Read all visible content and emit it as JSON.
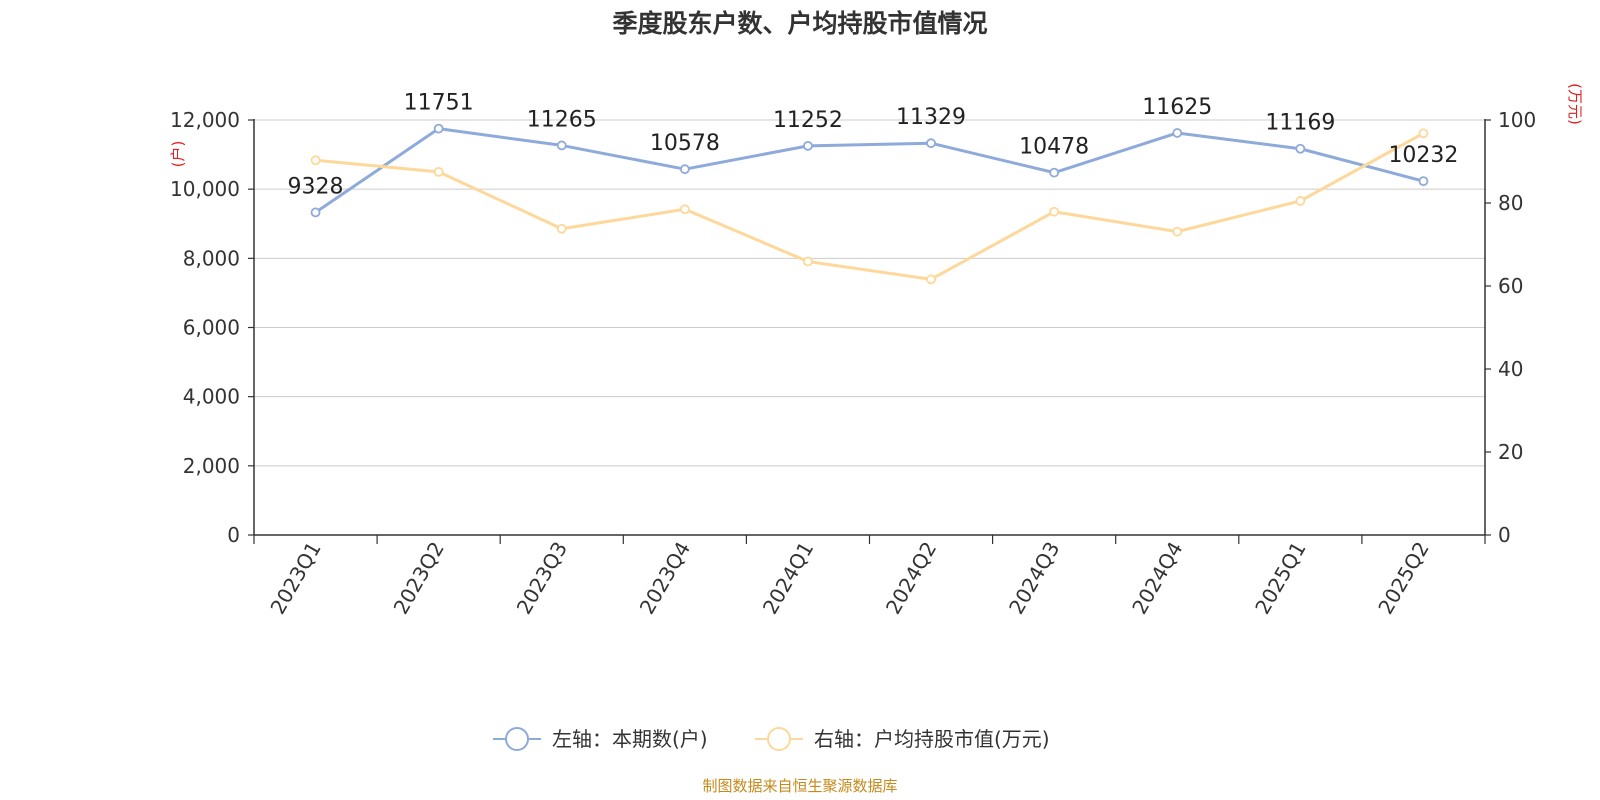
{
  "chart_data": {
    "type": "line",
    "title": "季度股东户数、户均持股市值情况",
    "categories": [
      "2023Q1",
      "2023Q2",
      "2023Q3",
      "2023Q4",
      "2024Q1",
      "2024Q2",
      "2024Q3",
      "2024Q4",
      "2025Q1",
      "2025Q2"
    ],
    "left_axis": {
      "unit": "(户)",
      "ylim": [
        0,
        12000
      ],
      "ticks": [
        "0",
        "2,000",
        "4,000",
        "6,000",
        "8,000",
        "10,000",
        "12,000"
      ],
      "tick_values": [
        0,
        2000,
        4000,
        6000,
        8000,
        10000,
        12000
      ]
    },
    "right_axis": {
      "unit": "(万元)",
      "ylim": [
        0,
        100
      ],
      "ticks": [
        "0",
        "20",
        "40",
        "60",
        "80",
        "100"
      ],
      "tick_values": [
        0,
        20,
        40,
        60,
        80,
        100
      ]
    },
    "series": [
      {
        "name": "左轴：本期数(户)",
        "axis": "left",
        "color": "#8eaadb",
        "values": [
          9328,
          11751,
          11265,
          10578,
          11252,
          11329,
          10478,
          11625,
          11169,
          10232
        ],
        "labels": [
          "9328",
          "11751",
          "11265",
          "10578",
          "11252",
          "11329",
          "10478",
          "11625",
          "11169",
          "10232"
        ]
      },
      {
        "name": "右轴：户均持股市值(万元)",
        "axis": "right",
        "color": "#fdd89a",
        "values": [
          90.3,
          87.5,
          73.8,
          78.5,
          65.9,
          61.6,
          77.9,
          73.1,
          80.5,
          96.8
        ]
      }
    ],
    "grid": true,
    "legend_position": "bottom-center"
  },
  "source": "制图数据来自恒生聚源数据库",
  "colors": {
    "left_unit": "#e02020",
    "right_unit": "#e02020",
    "axis": "#333333",
    "grid": "#cccccc",
    "source": "#c58a1b"
  }
}
